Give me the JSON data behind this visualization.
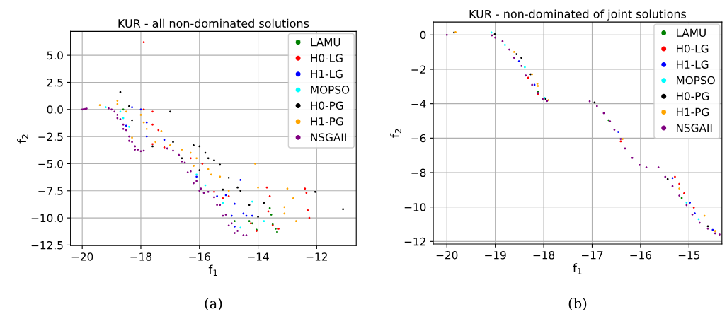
{
  "chart_data": [
    {
      "type": "scatter",
      "title": "KUR - all non-dominated solutions",
      "xlabel": "f$_{1}$",
      "ylabel": "f$_{2}$",
      "annotations": [
        "(a)"
      ],
      "xlim": [
        -20.4,
        -10.65
      ],
      "ylim": [
        -12.55,
        7.2
      ],
      "xticks": [
        {
          "value": -20,
          "label": "−20"
        },
        {
          "value": -18,
          "label": "−18"
        },
        {
          "value": -16,
          "label": "−16"
        },
        {
          "value": -14,
          "label": "−14"
        },
        {
          "value": -12,
          "label": "−12"
        }
      ],
      "yticks": [
        {
          "value": -12.5,
          "label": "−12.5"
        },
        {
          "value": -10,
          "label": "−10.0"
        },
        {
          "value": -7.5,
          "label": "−7.5"
        },
        {
          "value": -5,
          "label": "−5.0"
        },
        {
          "value": -2.5,
          "label": "−2.5"
        },
        {
          "value": 0,
          "label": "0.0"
        },
        {
          "value": 2.5,
          "label": "2.5"
        },
        {
          "value": 5,
          "label": "5.0"
        }
      ],
      "grid": true,
      "legend": "top right",
      "marker": "circle",
      "series": [
        {
          "name": "LAMU",
          "color": "#008000",
          "x": [
            -18.6,
            -14.8,
            -14.3,
            -14.2,
            -14.05,
            -13.6,
            -13.55,
            -13.5,
            -13.4,
            -13.35
          ],
          "values": [
            0.0,
            -10.3,
            -10.3,
            -10.5,
            -11.1,
            -9.1,
            -9.7,
            -10.6,
            -11.0,
            -11.3
          ]
        },
        {
          "name": "H0-LG",
          "color": "#ff0000",
          "x": [
            -17.9,
            -17.9,
            -17.6,
            -17.6,
            -17.4,
            -17.6,
            -17.2,
            -16.3,
            -15.9,
            -15.5,
            -15.2,
            -15.0,
            -14.25,
            -13.7,
            -13.6,
            -13.65,
            -13.5,
            -14.05,
            -13.3,
            -12.4,
            -12.35,
            -12.3,
            -12.25
          ],
          "values": [
            6.2,
            0.0,
            -0.2,
            -1.4,
            -1.9,
            -3.2,
            -3.5,
            -4.5,
            -5.0,
            -7.6,
            -8.2,
            -8.0,
            -10.5,
            -7.2,
            -8.0,
            -9.4,
            -10.7,
            -11.2,
            -11.0,
            -7.3,
            -7.7,
            -9.3,
            -10.0
          ]
        },
        {
          "name": "H1-LG",
          "color": "#0000ff",
          "x": [
            -18.3,
            -18.0,
            -18.5,
            -17.8,
            -17.8,
            -17.2,
            -16.1,
            -15.4,
            -15.1,
            -14.9,
            -14.8,
            -14.8,
            -14.6,
            -14.5,
            -14.4,
            -14.2
          ],
          "values": [
            0.2,
            0.0,
            -1.5,
            -1.2,
            -2.5,
            -2.8,
            -6.2,
            -8.0,
            -7.9,
            -9.8,
            -8.7,
            -10.8,
            -6.5,
            -9.6,
            -9.8,
            -9.8
          ]
        },
        {
          "name": "MOPSO",
          "color": "#00ffff",
          "x": [
            -19.2,
            -18.7,
            -18.6,
            -18.4,
            -16.1,
            -15.8,
            -15.2,
            -14.6,
            -14.2,
            -13.8
          ],
          "values": [
            0.2,
            -0.2,
            -0.8,
            -1.6,
            -6.0,
            -7.0,
            -8.6,
            -10.9,
            -8.5,
            -10.3
          ]
        },
        {
          "name": "H0-PG",
          "color": "#000000",
          "x": [
            -18.7,
            -18.4,
            -18.3,
            -17.6,
            -17.0,
            -16.9,
            -16.6,
            -16.2,
            -16.0,
            -16.0,
            -15.8,
            -15.7,
            -15.5,
            -15.3,
            -15.2,
            -15.0,
            -14.7,
            -14.6,
            -14.3,
            -14.0,
            -13.8,
            -12.05,
            -11.1
          ],
          "values": [
            1.6,
            0.3,
            -1.0,
            -3.4,
            -0.2,
            -3.0,
            -4.5,
            -3.3,
            -3.4,
            -5.6,
            -4.0,
            -4.5,
            -4.7,
            -5.1,
            -7.4,
            -6.3,
            -7.2,
            -7.5,
            -8.8,
            -9.9,
            -8.6,
            -7.6,
            -9.2
          ]
        },
        {
          "name": "H1-PG",
          "color": "#ffa500",
          "x": [
            -19.4,
            -18.8,
            -18.8,
            -18.5,
            -18.3,
            -18.0,
            -17.9,
            -17.8,
            -17.5,
            -17.3,
            -17.0,
            -16.6,
            -16.3,
            -16.2,
            -16.1,
            -15.7,
            -15.6,
            -15.3,
            -15.0,
            -14.1,
            -14.0,
            -13.1,
            -13.1,
            -13.0,
            -12.8,
            -12.7
          ],
          "values": [
            0.4,
            0.8,
            0.5,
            -0.2,
            -2.6,
            -0.5,
            -1.2,
            -1.8,
            -3.0,
            -2.0,
            -3.3,
            -3.7,
            -4.0,
            -5.2,
            -4.5,
            -5.5,
            -6.0,
            -6.2,
            -7.5,
            -5.0,
            -7.2,
            -9.0,
            -9.6,
            -7.3,
            -8.2,
            -10.3
          ]
        },
        {
          "name": "NSGAII",
          "color": "#800080",
          "x": [
            -20.0,
            -19.95,
            -19.9,
            -19.85,
            -19.1,
            -19.0,
            -18.9,
            -18.8,
            -18.8,
            -18.7,
            -18.6,
            -18.6,
            -18.5,
            -18.4,
            -18.4,
            -18.3,
            -18.2,
            -18.2,
            -18.1,
            -18.0,
            -17.9,
            -17.1,
            -16.9,
            -16.7,
            -16.6,
            -16.5,
            -16.4,
            -16.3,
            -16.2,
            -16.1,
            -16.0,
            -15.95,
            -15.85,
            -15.7,
            -15.5,
            -15.4,
            -15.3,
            -15.2,
            -15.1,
            -15.0,
            -14.9,
            -14.8,
            -14.7,
            -14.5,
            -14.4
          ],
          "values": [
            0.0,
            0.02,
            0.05,
            0.08,
            0.1,
            0.0,
            -0.2,
            -0.5,
            -0.8,
            -0.9,
            -1.4,
            -1.8,
            -1.9,
            -2.5,
            -2.9,
            -3.0,
            -3.4,
            -3.7,
            -3.7,
            -3.85,
            -3.8,
            -3.6,
            -3.8,
            -4.2,
            -4.8,
            -4.9,
            -5.8,
            -5.7,
            -6.8,
            -6.6,
            -7.5,
            -7.3,
            -7.7,
            -7.6,
            -8.1,
            -8.8,
            -8.8,
            -9.8,
            -9.7,
            -10.7,
            -10.5,
            -11.4,
            -11.2,
            -11.6,
            -11.6
          ]
        }
      ]
    },
    {
      "type": "scatter",
      "title": "KUR - non-dominated of joint solutions",
      "xlabel": "f$_{1}$",
      "ylabel": "f$_{2}$",
      "annotations": [
        "(b)"
      ],
      "xlim": [
        -20.28,
        -14.32
      ],
      "ylim": [
        -12.15,
        0.75
      ],
      "xticks": [
        {
          "value": -20,
          "label": "−20"
        },
        {
          "value": -19,
          "label": "−19"
        },
        {
          "value": -18,
          "label": "−18"
        },
        {
          "value": -17,
          "label": "−17"
        },
        {
          "value": -16,
          "label": "−16"
        },
        {
          "value": -15,
          "label": "−15"
        }
      ],
      "yticks": [
        {
          "value": -12,
          "label": "−12"
        },
        {
          "value": -10,
          "label": "−10"
        },
        {
          "value": -8,
          "label": "−8"
        },
        {
          "value": -6,
          "label": "−6"
        },
        {
          "value": -4,
          "label": "−4"
        },
        {
          "value": -2,
          "label": "−2"
        },
        0
      ],
      "grid": true,
      "legend": "top right",
      "marker": "circle",
      "series": [
        {
          "name": "LAMU",
          "color": "#008000",
          "x": [
            -18.12,
            -16.66,
            -15.15
          ],
          "values": [
            -3.3,
            -4.96,
            -9.48
          ]
        },
        {
          "name": "H0-LG",
          "color": "#ff0000",
          "x": [
            -18.32,
            -18.12,
            -16.41,
            -15.29,
            -15.2,
            -15.1,
            -14.9
          ],
          "values": [
            -2.49,
            -3.45,
            -6.19,
            -8.25,
            -8.66,
            -9.21,
            -10.03
          ]
        },
        {
          "name": "H1-LG",
          "color": "#0000ff",
          "x": [
            -18.51,
            -18.19,
            -16.46,
            -15.34,
            -14.98,
            -14.88,
            -14.51
          ],
          "values": [
            -1.53,
            -2.9,
            -5.64,
            -8.32,
            -9.75,
            -10.37,
            -11.33
          ]
        },
        {
          "name": "MOPSO",
          "color": "#00ffff",
          "x": [
            -19.08,
            -18.8,
            -18.39,
            -17.98,
            -15.05,
            -14.8
          ],
          "values": [
            0.14,
            -0.58,
            -1.88,
            -3.66,
            -9.75,
            -10.71
          ]
        },
        {
          "name": "H0-PG",
          "color": "#000000",
          "x": [
            -19.85,
            -19.01,
            -18.56,
            -18.46,
            -18.27,
            -17.96,
            -16.95,
            -15.44,
            -14.61
          ],
          "values": [
            0.14,
            0.04,
            -1.12,
            -1.33,
            -2.29,
            -3.73,
            -3.93,
            -8.38,
            -11.12
          ]
        },
        {
          "name": "H1-PG",
          "color": "#ffa500",
          "x": [
            -19.82,
            -18.61,
            -18.24,
            -18.13,
            -18.12,
            -17.9,
            -16.37,
            -15.2,
            -14.68,
            -14.46
          ],
          "values": [
            0.16,
            -0.99,
            -2.29,
            -2.84,
            -2.97,
            -3.79,
            -6.05,
            -8.93,
            -10.51,
            -11.4
          ]
        },
        {
          "name": "NSGAII",
          "color": "#800080",
          "x": [
            -20.0,
            -19.07,
            -19.0,
            -18.85,
            -18.71,
            -18.61,
            -18.46,
            -18.37,
            -18.24,
            -18.12,
            -18.02,
            -17.93,
            -17.05,
            -16.9,
            -16.76,
            -16.63,
            -16.54,
            -16.41,
            -16.32,
            -16.17,
            -16.02,
            -15.88,
            -15.63,
            -15.49,
            -15.34,
            -15.2,
            -15.05,
            -14.93,
            -14.78,
            -14.61,
            -14.46,
            -14.37
          ],
          "values": [
            0.0,
            -0.03,
            -0.16,
            -0.37,
            -0.85,
            -1.33,
            -1.81,
            -2.36,
            -2.9,
            -3.38,
            -3.73,
            -3.84,
            -3.86,
            -4.14,
            -4.55,
            -5.03,
            -5.51,
            -6.05,
            -6.6,
            -7.15,
            -7.56,
            -7.7,
            -7.7,
            -8.25,
            -8.79,
            -9.34,
            -9.89,
            -10.44,
            -10.92,
            -11.26,
            -11.53,
            -11.6
          ]
        }
      ]
    }
  ]
}
